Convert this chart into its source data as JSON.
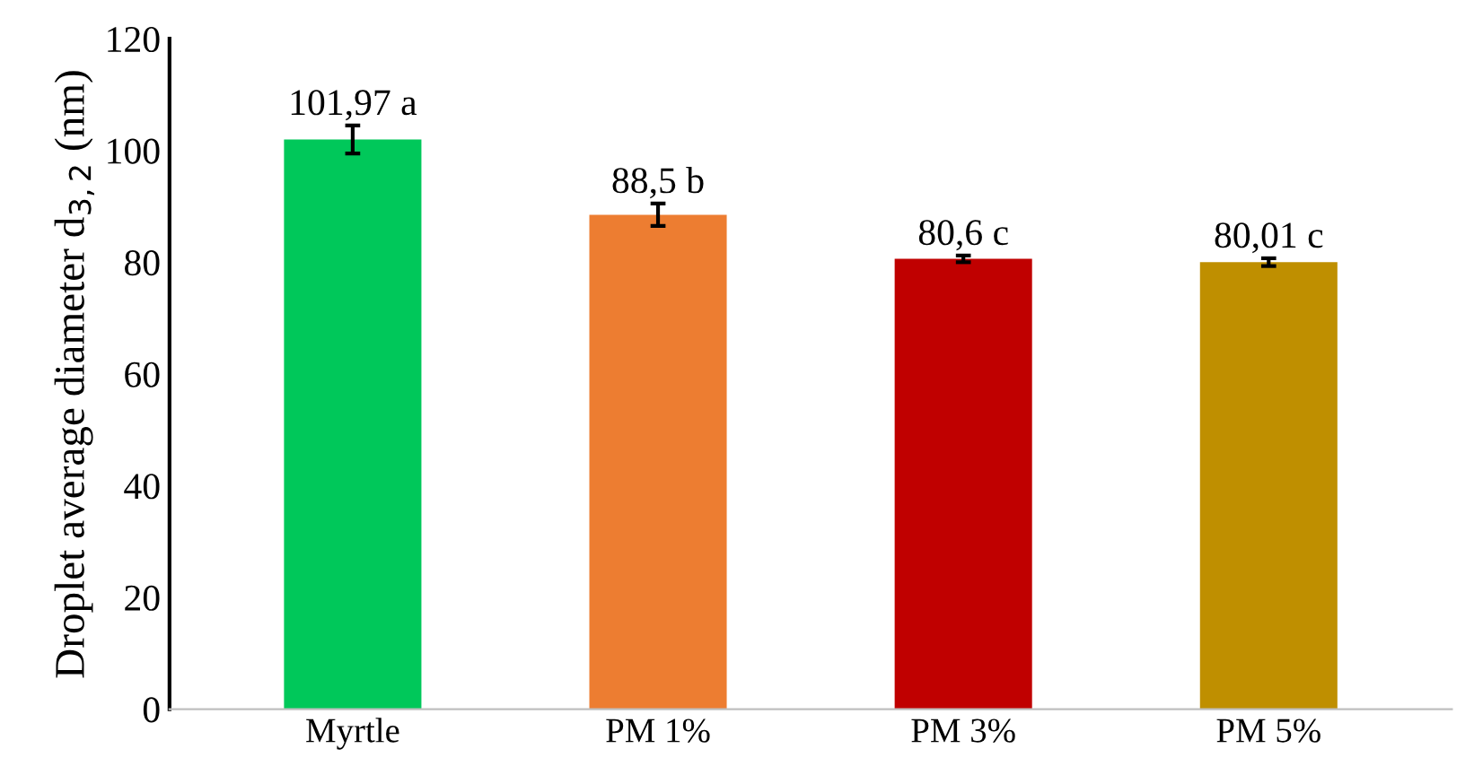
{
  "chart_data": {
    "type": "bar",
    "ylabel": "Droplet average diameter d$_{3,2}$ (nm)",
    "categories": [
      "Myrtle",
      "PM 1%",
      "PM 3%",
      "PM 5%"
    ],
    "values": [
      101.97,
      88.5,
      80.6,
      80.01
    ],
    "colors": [
      "#00c85a",
      "#ed7d31",
      "#c00000",
      "#bf8f00"
    ],
    "errors": [
      2.5,
      2.0,
      0.6,
      0.7
    ],
    "value_labels": [
      "101,97 a",
      "88,5 b",
      "80,6 c",
      "80,01 c"
    ],
    "ylim": [
      0,
      120
    ],
    "yticks": [
      0,
      20,
      40,
      60,
      80,
      100,
      120
    ],
    "grid": false
  }
}
